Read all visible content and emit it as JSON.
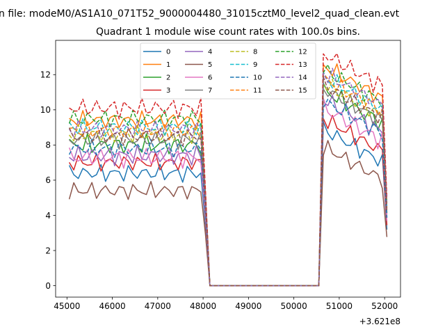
{
  "figure": {
    "suptitle": "n file: modeM0/AS1A10_071T52_9000004480_31015cztM0_level2_quad_clean.evt"
  },
  "chart_data": {
    "type": "line",
    "title": "Quadrant 1 module wise count rates with 100.0s bins.",
    "xlabel": "",
    "ylabel": "",
    "x_offset_label": "+3.621e8",
    "xlim": [
      44750,
      52350
    ],
    "ylim": [
      -0.65,
      13.95
    ],
    "xticks": [
      45000,
      46000,
      47000,
      48000,
      49000,
      50000,
      51000,
      52000
    ],
    "yticks": [
      0,
      2,
      4,
      6,
      8,
      10,
      12
    ],
    "grid": false,
    "legend_placement": "upper center",
    "x_segments": [
      {
        "start": 45050,
        "end": 48050,
        "step": 100
      },
      {
        "start": 48150,
        "end": 50550,
        "step": 100
      },
      {
        "start": 50650,
        "end": 52050,
        "step": 100
      }
    ],
    "series": [
      {
        "name": "0",
        "color": "#1f77b4",
        "dash": "solid",
        "level_a": 6.4,
        "level_b": 7.6,
        "jitter": 0.35,
        "phase": 1.3
      },
      {
        "name": "1",
        "color": "#ff7f0e",
        "dash": "solid",
        "level_a": 9.4,
        "level_b": 11.2,
        "jitter": 0.35,
        "phase": 2.1
      },
      {
        "name": "2",
        "color": "#2ca02c",
        "dash": "solid",
        "level_a": 8.0,
        "level_b": 9.8,
        "jitter": 0.4,
        "phase": 0.4
      },
      {
        "name": "3",
        "color": "#d62728",
        "dash": "solid",
        "level_a": 7.0,
        "level_b": 8.2,
        "jitter": 0.35,
        "phase": 3.3
      },
      {
        "name": "4",
        "color": "#9467bd",
        "dash": "solid",
        "level_a": 7.4,
        "level_b": 9.3,
        "jitter": 0.4,
        "phase": 4.1
      },
      {
        "name": "5",
        "color": "#8c564b",
        "dash": "solid",
        "level_a": 5.4,
        "level_b": 6.6,
        "jitter": 0.35,
        "phase": 5.2
      },
      {
        "name": "6",
        "color": "#e377c2",
        "dash": "solid",
        "level_a": 7.3,
        "level_b": 8.8,
        "jitter": 0.4,
        "phase": 0.9
      },
      {
        "name": "7",
        "color": "#7f7f7f",
        "dash": "solid",
        "level_a": 8.3,
        "level_b": 9.9,
        "jitter": 0.35,
        "phase": 2.8
      },
      {
        "name": "8",
        "color": "#bcbd22",
        "dash": "dashed",
        "level_a": 8.6,
        "level_b": 10.2,
        "jitter": 0.35,
        "phase": 3.9
      },
      {
        "name": "9",
        "color": "#17becf",
        "dash": "dashed",
        "level_a": 9.0,
        "level_b": 10.6,
        "jitter": 0.35,
        "phase": 1.7
      },
      {
        "name": "10",
        "color": "#1f77b4",
        "dash": "dashed",
        "level_a": 7.8,
        "level_b": 9.2,
        "jitter": 0.35,
        "phase": 4.7
      },
      {
        "name": "11",
        "color": "#ff7f0e",
        "dash": "dashed",
        "level_a": 8.8,
        "level_b": 10.5,
        "jitter": 0.35,
        "phase": 0.2
      },
      {
        "name": "12",
        "color": "#2ca02c",
        "dash": "dashed",
        "level_a": 9.5,
        "level_b": 11.0,
        "jitter": 0.35,
        "phase": 5.9
      },
      {
        "name": "13",
        "color": "#d62728",
        "dash": "dashed",
        "level_a": 10.1,
        "level_b": 11.9,
        "jitter": 0.4,
        "phase": 2.5
      },
      {
        "name": "14",
        "color": "#9467bd",
        "dash": "dashed",
        "level_a": 8.9,
        "level_b": 10.8,
        "jitter": 0.35,
        "phase": 3.6
      },
      {
        "name": "15",
        "color": "#8c564b",
        "dash": "dashed",
        "level_a": 8.5,
        "level_b": 10.1,
        "jitter": 0.35,
        "phase": 1.1
      }
    ]
  }
}
